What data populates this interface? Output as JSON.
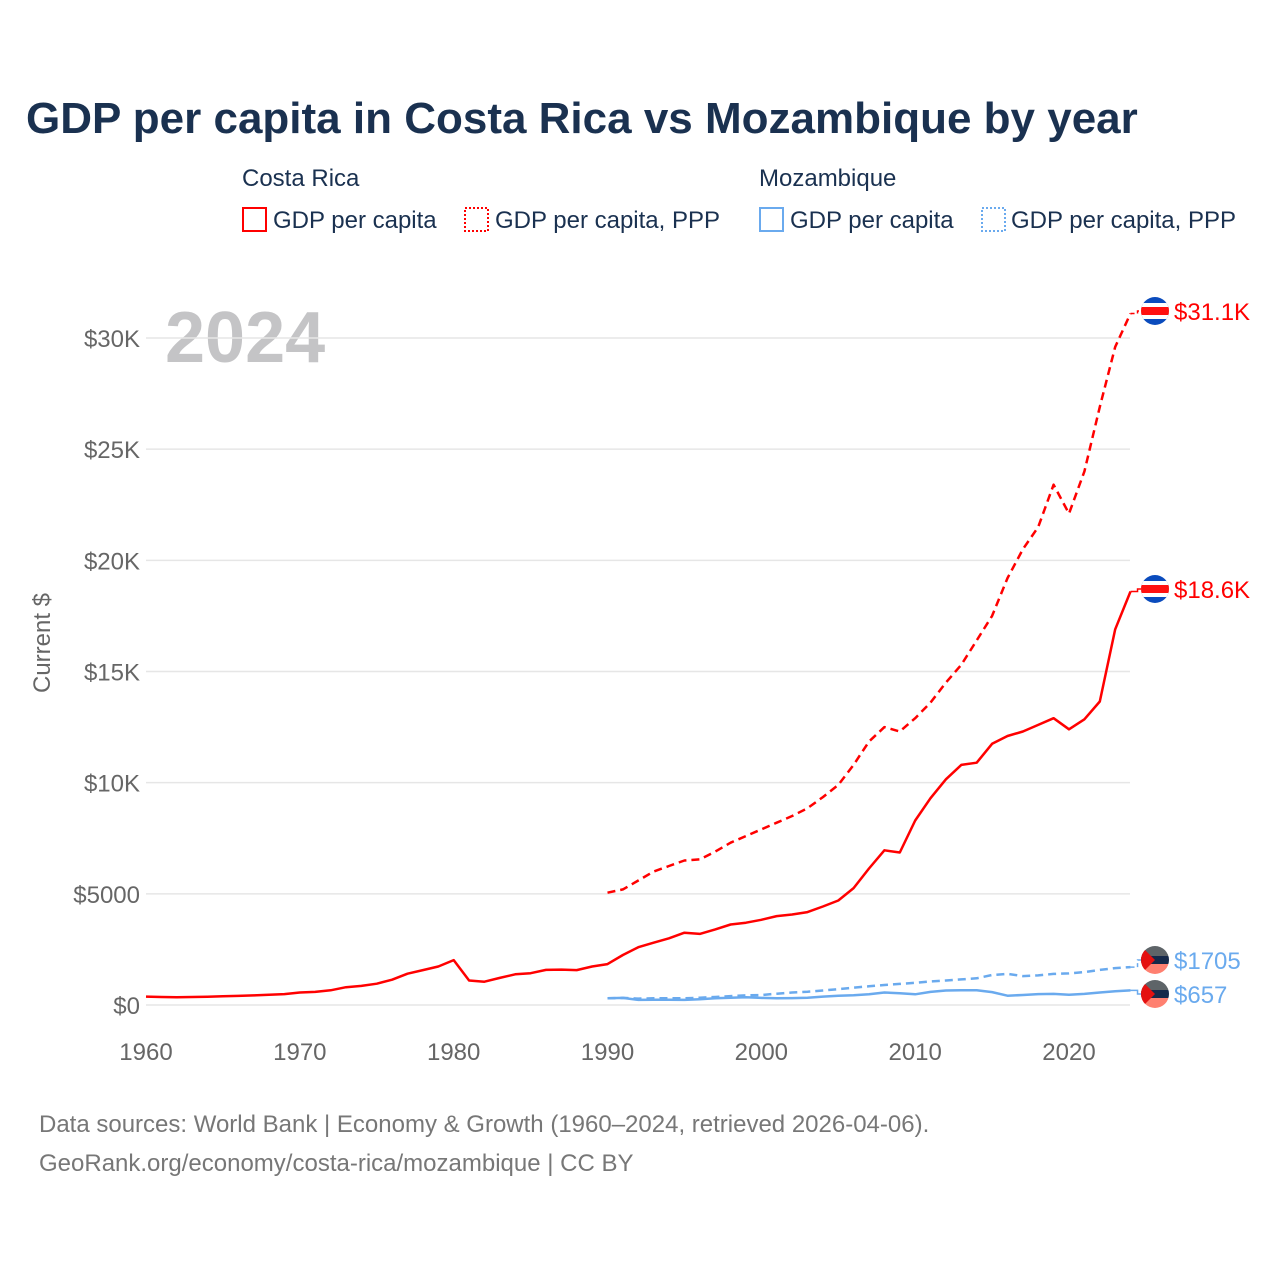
{
  "chart_data": {
    "type": "line",
    "title": "GDP per capita in Costa Rica vs Mozambique by year",
    "year_label": "2024",
    "ylabel": "Current $",
    "xlabel": "",
    "xlim": [
      1960,
      2024
    ],
    "ylim": [
      0,
      32000
    ],
    "grid": true,
    "x_ticks": [
      1960,
      1970,
      1980,
      1990,
      2000,
      2010,
      2020
    ],
    "x_tick_labels": [
      "1960",
      "1970",
      "1980",
      "1990",
      "2000",
      "2010",
      "2020"
    ],
    "y_ticks": [
      0,
      5000,
      10000,
      15000,
      20000,
      25000,
      30000
    ],
    "y_tick_labels": [
      "$0",
      "$5000",
      "$10K",
      "$15K",
      "$20K",
      "$25K",
      "$30K"
    ],
    "legend": {
      "placement": "top",
      "groups": [
        {
          "country": "Costa Rica",
          "items": [
            "GDP per capita",
            "GDP per capita, PPP"
          ]
        },
        {
          "country": "Mozambique",
          "items": [
            "GDP per capita",
            "GDP per capita, PPP"
          ]
        }
      ]
    },
    "colors": {
      "costa_rica": "#ff0000",
      "mozambique": "#6aaaee"
    },
    "series": [
      {
        "name": "Costa Rica GDP per capita",
        "country": "costa_rica",
        "dash": false,
        "end_label": "$18.6K",
        "start": 1960,
        "values": [
          380,
          360,
          350,
          360,
          370,
          390,
          410,
          430,
          460,
          490,
          560,
          590,
          660,
          800,
          860,
          960,
          1140,
          1410,
          1570,
          1730,
          2020,
          1100,
          1050,
          1220,
          1380,
          1430,
          1580,
          1590,
          1570,
          1730,
          1840,
          2250,
          2600,
          2800,
          3000,
          3250,
          3200,
          3400,
          3620,
          3700,
          3830,
          4000,
          4070,
          4180,
          4430,
          4700,
          5260,
          6140,
          6960,
          6860,
          8300,
          9300,
          10150,
          10800,
          10900,
          11750,
          12100,
          12300,
          12600,
          12900,
          12400,
          12850,
          13650,
          16900,
          18600
        ]
      },
      {
        "name": "Costa Rica GDP per capita, PPP",
        "country": "costa_rica",
        "dash": true,
        "end_label": "$31.1K",
        "start": 1990,
        "values": [
          5050,
          5200,
          5600,
          6000,
          6250,
          6500,
          6550,
          6900,
          7300,
          7600,
          7900,
          8200,
          8500,
          8850,
          9350,
          9900,
          10800,
          11850,
          12500,
          12300,
          12900,
          13600,
          14500,
          15300,
          16400,
          17500,
          19200,
          20500,
          21500,
          23400,
          22100,
          24000,
          26900,
          29600,
          31100
        ]
      },
      {
        "name": "Mozambique GDP per capita",
        "country": "mozambique",
        "dash": false,
        "end_label": "$657",
        "start": 1990,
        "values": [
          300,
          320,
          230,
          240,
          240,
          230,
          260,
          300,
          330,
          350,
          320,
          300,
          310,
          330,
          380,
          420,
          440,
          480,
          560,
          530,
          480,
          590,
          650,
          660,
          660,
          580,
          420,
          450,
          490,
          500,
          460,
          500,
          560,
          620,
          657
        ]
      },
      {
        "name": "Mozambique GDP per capita, PPP",
        "country": "mozambique",
        "dash": true,
        "end_label": "$1705",
        "start": 1990,
        "values": [
          300,
          320,
          290,
          300,
          300,
          300,
          330,
          360,
          400,
          430,
          450,
          510,
          560,
          600,
          650,
          710,
          780,
          840,
          900,
          950,
          1000,
          1060,
          1100,
          1150,
          1200,
          1350,
          1400,
          1300,
          1330,
          1400,
          1420,
          1480,
          1580,
          1660,
          1705
        ]
      }
    ]
  },
  "footer": {
    "line1": "Data sources: World Bank | Economy & Growth (1960–2024, retrieved 2026-04-06).",
    "line2": "GeoRank.org/economy/costa-rica/mozambique | CC BY"
  }
}
